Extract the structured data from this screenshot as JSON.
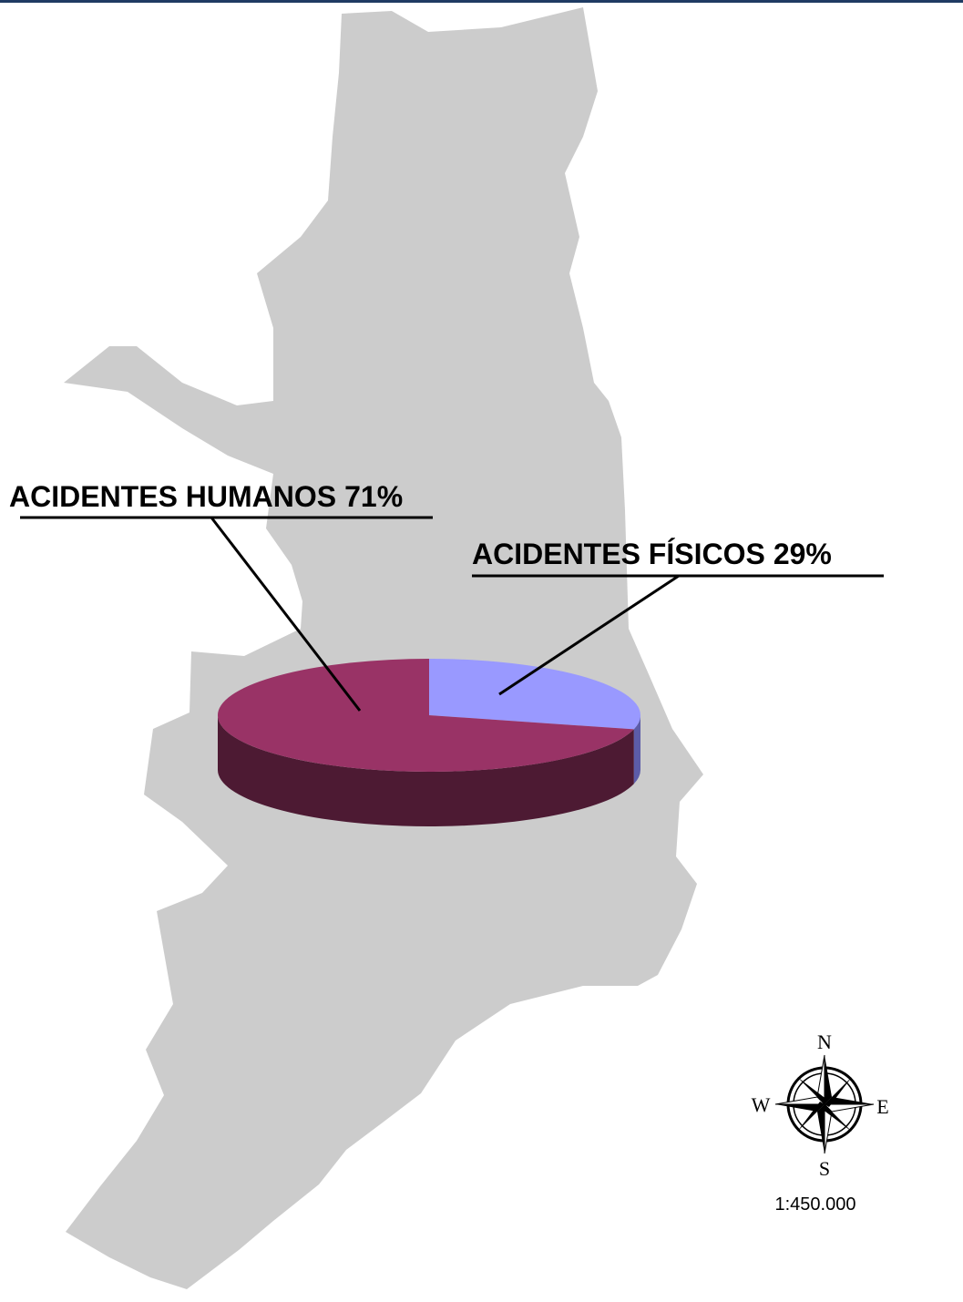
{
  "chart_data": {
    "type": "pie",
    "categories": [
      "ACIDENTES HUMANOS",
      "ACIDENTES FÍSICOS"
    ],
    "values": [
      71,
      29
    ],
    "value_labels": [
      "71%",
      "29%"
    ],
    "colors": [
      "#993366",
      "#9999ff"
    ],
    "side_colors": [
      "#4d1a33",
      "#5c5ca8"
    ]
  },
  "map": {
    "compass": {
      "n": "N",
      "s": "S",
      "e": "E",
      "w": "W"
    },
    "scale": "1:450.000"
  }
}
